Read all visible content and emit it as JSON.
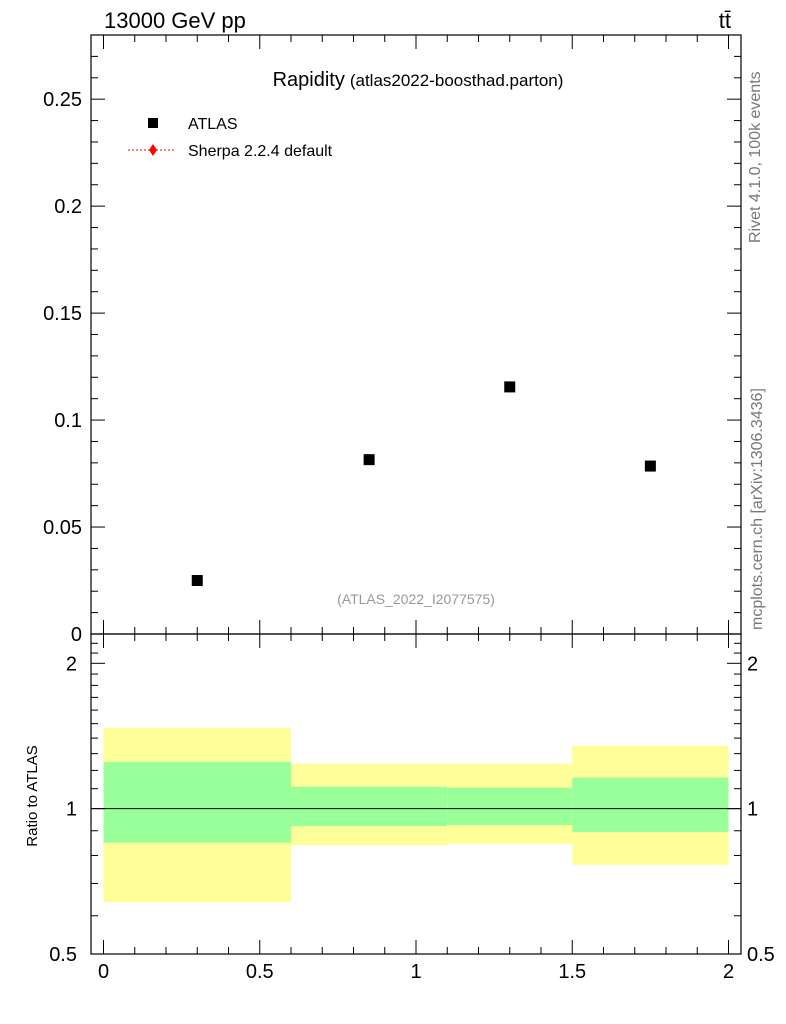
{
  "header": {
    "energy_label": "13000 GeV pp",
    "process_label": "tt̄"
  },
  "side_labels": {
    "rivet": "Rivet 4.1.0,  100k events",
    "mcplots": "mcplots.cern.ch [arXiv:1306.3436]"
  },
  "colors": {
    "data_marker": "#000000",
    "sherpa": "#ff0000",
    "band_inner": "#99ff99",
    "band_outer": "#ffff99",
    "watermark": "#999999",
    "side_text": "#777777"
  },
  "chart_data": [
    {
      "type": "scatter",
      "title": "Rapidity",
      "subtitle": "(atlas2022-boosthad.parton)",
      "watermark": "(ATLAS_2022_I2077575)",
      "xlabel": "",
      "ylabel": "",
      "xlim": [
        -0.04,
        2.04
      ],
      "ylim": [
        0,
        0.28
      ],
      "yticks": [
        0,
        0.05,
        0.1,
        0.15,
        0.2,
        0.25
      ],
      "ytick_labels": [
        "0",
        "0.05",
        "0.1",
        "0.15",
        "0.2",
        "0.25"
      ],
      "legend_position": "top-left",
      "legend": [
        "ATLAS",
        "Sherpa 2.2.4 default"
      ],
      "series": [
        {
          "name": "ATLAS",
          "marker": "square",
          "x": [
            0.3,
            0.85,
            1.3,
            1.75
          ],
          "y": [
            0.025,
            0.0815,
            0.1155,
            0.0785
          ],
          "xlow": [
            0.0,
            0.6,
            1.1,
            1.5
          ],
          "xhigh": [
            0.6,
            1.1,
            1.5,
            2.0
          ]
        },
        {
          "name": "Sherpa 2.2.4 default",
          "marker": "diamond",
          "x": [],
          "y": []
        }
      ]
    },
    {
      "type": "area",
      "title": "",
      "ylabel": "Ratio to ATLAS",
      "xlim": [
        -0.04,
        2.04
      ],
      "ylim": [
        0.5,
        2.3
      ],
      "yscale": "log",
      "xticks": [
        0,
        0.5,
        1,
        1.5,
        2
      ],
      "xtick_labels": [
        "0",
        "0.5",
        "1",
        "1.5",
        "2"
      ],
      "yticks": [
        0.5,
        1,
        2
      ],
      "ytick_labels": [
        "0.5",
        "1",
        "2"
      ],
      "reference_line": 1,
      "bins": [
        {
          "xlow": 0.0,
          "xhigh": 0.6,
          "inner": [
            0.85,
            1.25
          ],
          "outer": [
            0.64,
            1.47
          ]
        },
        {
          "xlow": 0.6,
          "xhigh": 1.1,
          "inner": [
            0.92,
            1.11
          ],
          "outer": [
            0.84,
            1.24
          ]
        },
        {
          "xlow": 1.1,
          "xhigh": 1.5,
          "inner": [
            0.925,
            1.105
          ],
          "outer": [
            0.845,
            1.24
          ]
        },
        {
          "xlow": 1.5,
          "xhigh": 2.0,
          "inner": [
            0.895,
            1.16
          ],
          "outer": [
            0.765,
            1.35
          ]
        }
      ]
    }
  ]
}
